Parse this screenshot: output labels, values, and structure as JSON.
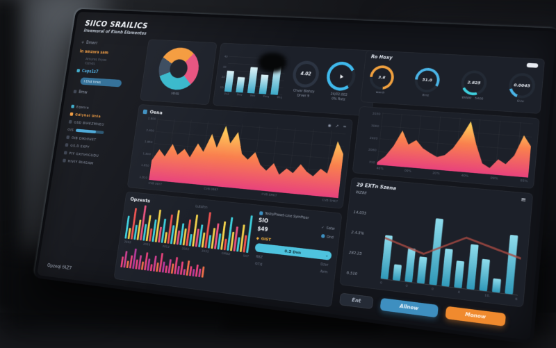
{
  "window": {
    "title": "SIICO SRAILICS",
    "subtitle": "Invemsral of Klenb Elamentes"
  },
  "icons": {
    "eye": "◉",
    "share": "➚",
    "menu": "≡",
    "plus": "+",
    "check": "✓",
    "diamond": "◆",
    "chev": "⌄",
    "dot": "●",
    "play": "▲",
    "burger": "≡"
  },
  "colors": {
    "accent_blue": "#3e8fc0",
    "accent_orange": "#f08a2e",
    "accent_teal": "#4ec3de",
    "accent_pink": "#e8537f"
  },
  "sidebar": {
    "items": [
      {
        "label": "Bmwrr"
      },
      {
        "label": "In amzara sam"
      },
      {
        "label": "Amures Eryas"
      },
      {
        "label": "Ciznds"
      },
      {
        "label": "Caps1z7"
      },
      {
        "label": "I Ehd hrws"
      },
      {
        "label": "Bmw"
      },
      {
        "label": "Eqanra"
      },
      {
        "label": "Gdlyhal Unia"
      },
      {
        "label": "GSD BIHEZMHEU"
      },
      {
        "label": "OIS"
      },
      {
        "label": "OIB DIKHIHET"
      },
      {
        "label": "GS.D EXPY"
      },
      {
        "label": "PIY GXTIHIGUDU"
      },
      {
        "label": "HIVIY BIHGAW"
      }
    ],
    "footer": "Opzeql fAZ7"
  },
  "donut_card": {
    "label": "MMB",
    "from": -60,
    "segments": [
      {
        "color": "#f59b3d",
        "pct": 28
      },
      {
        "color": "#e8537f",
        "pct": 26
      },
      {
        "color": "#38b8cc",
        "pct": 31
      },
      {
        "color": "#3a4a5e",
        "pct": 15
      }
    ]
  },
  "mini_chart": {
    "type": "bars",
    "heights": [
      55,
      40,
      68,
      50,
      75
    ],
    "yticks": [
      "40",
      "30",
      "20",
      "10"
    ],
    "labels": [
      "9n2",
      "9hw",
      "9wz",
      "9mq",
      "9hq"
    ]
  },
  "gauge_small": {
    "value": "4.02",
    "label": "Chvar Blahzy",
    "label2": "Drver 9"
  },
  "gauge_blue": {
    "label": "24/02.002",
    "label2": "0% Rutz",
    "side": "Prwz",
    "color": "#3fb9ec",
    "pct": 78,
    "from": 140
  },
  "main_chart": {
    "title": "Oena",
    "yticks": [
      "2,600",
      "2,400",
      "1,850",
      "1,800",
      "1,850",
      "1,810"
    ],
    "xticks": [
      "CVB 06Y7",
      "CVB 0667",
      "CVB 5MK7",
      "CVB 5HK7"
    ],
    "area": {
      "type": "area",
      "values": [
        30,
        48,
        38,
        58,
        42,
        52,
        40,
        62,
        50,
        78,
        58,
        92,
        66,
        84,
        52,
        44,
        56,
        38,
        30,
        42,
        26,
        36,
        30,
        44,
        34,
        28,
        40,
        34,
        82,
        64
      ]
    }
  },
  "right_gauges": {
    "title": "Ro Hoxy",
    "items": [
      {
        "value": "3.8",
        "label": "werdr",
        "label2": "",
        "color": "#f0a03e",
        "pct": 72,
        "from": -90
      },
      {
        "value": "51.0",
        "label": "Errz",
        "label2": "",
        "color": "#4ab4e6",
        "pct": 58,
        "from": -90
      },
      {
        "value": "2.825",
        "label": "5400",
        "label2": "WWW",
        "color": "#3ecfdd",
        "pct": 22,
        "from": 160
      },
      {
        "value": "0.0045",
        "label": "O.hr",
        "label2": "",
        "color": "#4ab4e6",
        "pct": 14,
        "from": 200
      }
    ]
  },
  "right_chart": {
    "yticks": [
      "2030",
      "3060",
      "2020",
      "2080",
      "310"
    ],
    "xticks": [
      "40%",
      "09%",
      "20%",
      "40%",
      "09%",
      "05%"
    ],
    "area": {
      "type": "area",
      "values": [
        5,
        18,
        40,
        72,
        45,
        55,
        40,
        32,
        25,
        30,
        45,
        70,
        100,
        55,
        20,
        12,
        30,
        22,
        40,
        80,
        60
      ]
    }
  },
  "opzexts": {
    "title": "Opzexts",
    "subtitle": "Lutsfcn",
    "bars_multi": {
      "type": "bars",
      "heights": [
        62,
        30,
        85,
        40,
        55,
        95,
        45,
        70,
        35,
        60,
        88,
        42,
        65,
        30,
        78,
        50,
        92,
        38,
        58,
        45,
        70,
        32,
        85,
        48,
        60,
        40,
        95,
        35,
        55,
        68,
        42,
        75,
        30,
        88,
        50,
        65,
        38,
        72,
        45,
        98
      ],
      "palette": [
        "#3ecfdd",
        "#f2d24b",
        "#ef5350",
        "#3ecfdd",
        "#f2d24b",
        "#e8537f"
      ]
    },
    "xticks": [
      "2002",
      "2003",
      "2012",
      "2022",
      "2032",
      "GMBZ",
      "5X7"
    ],
    "bars_pink": {
      "type": "bars",
      "heights": [
        45,
        70,
        30,
        55,
        85,
        40,
        60,
        35,
        75,
        50,
        28,
        65,
        38,
        80,
        45,
        30,
        58,
        42,
        70,
        35,
        55,
        25,
        62,
        40,
        30,
        50,
        35,
        45
      ],
      "palette": [
        "#e8427c",
        "#cf3f92",
        "#f0704a",
        "#e8427c",
        "#b93a9e"
      ]
    },
    "panel": {
      "header": "Tests/Preset-Line Symfhser",
      "sio": "SIO",
      "price": "$49",
      "toggle1": "Satw",
      "toggle2": "Dnd",
      "gist": "GIST",
      "pill": "0.5 Dvn",
      "l1": "RBZ",
      "l2": "Dzvr",
      "l3": "G7zj",
      "l4": "Avm"
    }
  },
  "stats_panel": {
    "title": "29 EXTn Szena",
    "stats": [
      "WZ88",
      "14.035",
      "2.4.5%",
      "282.25",
      "6.510"
    ],
    "bars": {
      "type": "bars",
      "heights": [
        50,
        18,
        38,
        30,
        75,
        42,
        30,
        50,
        35,
        15,
        65
      ],
      "trend": "0,16 30,20 60,13 100,18"
    },
    "xticks": [
      "0",
      "0",
      "0",
      "0",
      "10.",
      "6"
    ]
  },
  "buttons": {
    "ent": "Ent",
    "allow": "Allnow",
    "monow": "Monow"
  }
}
